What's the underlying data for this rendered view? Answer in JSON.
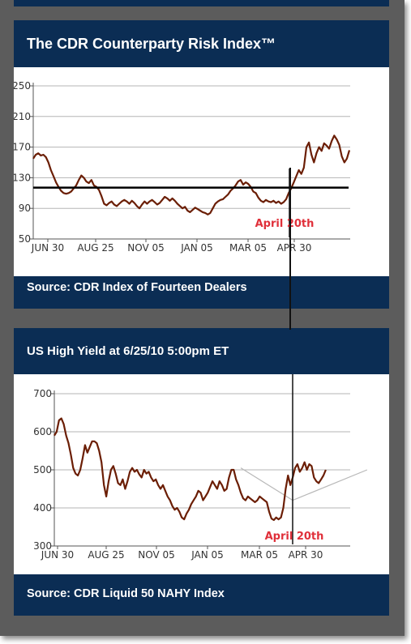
{
  "chart_data": [
    {
      "type": "line",
      "title": "The CDR Counterparty Risk Index™",
      "source": "Source: CDR Index of Fourteen Dealers",
      "ylim": [
        50,
        250
      ],
      "yticks": [
        "250",
        "210",
        "170",
        "130",
        "90",
        "50"
      ],
      "ytick_values": [
        250,
        210,
        170,
        130,
        90,
        50
      ],
      "xlim": [
        "JUN 30",
        "end"
      ],
      "xticks": [
        "JUN 30",
        "AUG 25",
        "NOV 05",
        "JAN 05",
        "MAR 05",
        "APR 30"
      ],
      "grid": true,
      "reference_line": 117,
      "annotation": "April 20th",
      "series": [
        {
          "values": [
            [
              0,
              155
            ],
            [
              2,
              160
            ],
            [
              4,
              162
            ],
            [
              6,
              159
            ],
            [
              8,
              160
            ],
            [
              10,
              157
            ],
            [
              12,
              150
            ],
            [
              14,
              140
            ],
            [
              16,
              132
            ],
            [
              18,
              124
            ],
            [
              20,
              118
            ],
            [
              22,
              113
            ],
            [
              24,
              110
            ],
            [
              26,
              109
            ],
            [
              28,
              110
            ],
            [
              30,
              112
            ],
            [
              32,
              116
            ],
            [
              34,
              120
            ],
            [
              36,
              127
            ],
            [
              38,
              133
            ],
            [
              40,
              130
            ],
            [
              42,
              125
            ],
            [
              44,
              123
            ],
            [
              46,
              127
            ],
            [
              48,
              120
            ],
            [
              50,
              118
            ],
            [
              52,
              114
            ],
            [
              54,
              106
            ],
            [
              56,
              96
            ],
            [
              58,
              94
            ],
            [
              60,
              97
            ],
            [
              62,
              99
            ],
            [
              64,
              95
            ],
            [
              66,
              93
            ],
            [
              68,
              96
            ],
            [
              70,
              99
            ],
            [
              72,
              101
            ],
            [
              74,
              99
            ],
            [
              76,
              96
            ],
            [
              78,
              100
            ],
            [
              80,
              97
            ],
            [
              82,
              93
            ],
            [
              84,
              90
            ],
            [
              86,
              95
            ],
            [
              88,
              99
            ],
            [
              90,
              96
            ],
            [
              92,
              99
            ],
            [
              94,
              101
            ],
            [
              96,
              98
            ],
            [
              98,
              95
            ],
            [
              100,
              97
            ],
            [
              102,
              101
            ],
            [
              104,
              105
            ],
            [
              106,
              103
            ],
            [
              108,
              100
            ],
            [
              110,
              103
            ],
            [
              112,
              100
            ],
            [
              114,
              96
            ],
            [
              116,
              93
            ],
            [
              118,
              90
            ],
            [
              120,
              92
            ],
            [
              122,
              87
            ],
            [
              124,
              85
            ],
            [
              126,
              88
            ],
            [
              128,
              91
            ],
            [
              130,
              89
            ],
            [
              132,
              87
            ],
            [
              134,
              85
            ],
            [
              136,
              84
            ],
            [
              138,
              82
            ],
            [
              140,
              84
            ],
            [
              142,
              90
            ],
            [
              144,
              96
            ],
            [
              146,
              99
            ],
            [
              148,
              101
            ],
            [
              150,
              102
            ],
            [
              152,
              105
            ],
            [
              154,
              108
            ],
            [
              156,
              113
            ],
            [
              158,
              116
            ],
            [
              160,
              120
            ],
            [
              162,
              125
            ],
            [
              164,
              127
            ],
            [
              166,
              121
            ],
            [
              168,
              124
            ],
            [
              170,
              122
            ],
            [
              172,
              118
            ],
            [
              174,
              112
            ],
            [
              176,
              110
            ],
            [
              178,
              104
            ],
            [
              180,
              100
            ],
            [
              182,
              98
            ],
            [
              184,
              101
            ],
            [
              186,
              99
            ],
            [
              188,
              98
            ],
            [
              190,
              100
            ],
            [
              192,
              97
            ],
            [
              194,
              99
            ],
            [
              196,
              96
            ],
            [
              198,
              98
            ],
            [
              200,
              102
            ],
            [
              202,
              110
            ],
            [
              204,
              116
            ],
            [
              206,
              124
            ],
            [
              208,
              132
            ],
            [
              210,
              140
            ],
            [
              212,
              135
            ],
            [
              214,
              143
            ],
            [
              216,
              170
            ],
            [
              218,
              176
            ],
            [
              220,
              160
            ],
            [
              222,
              150
            ],
            [
              224,
              162
            ],
            [
              226,
              170
            ],
            [
              228,
              165
            ],
            [
              230,
              175
            ],
            [
              232,
              172
            ],
            [
              234,
              168
            ],
            [
              236,
              178
            ],
            [
              238,
              185
            ],
            [
              240,
              180
            ],
            [
              242,
              173
            ],
            [
              244,
              158
            ],
            [
              246,
              150
            ],
            [
              248,
              155
            ],
            [
              250,
              166
            ]
          ]
        }
      ]
    },
    {
      "type": "line",
      "title": "US High Yield at 6/25/10 5:00pm ET",
      "source": "Source: CDR Liquid 50 NAHY Index",
      "ylim": [
        300,
        700
      ],
      "yticks": [
        "700",
        "600",
        "500",
        "400",
        "300"
      ],
      "ytick_values": [
        700,
        600,
        500,
        400,
        300
      ],
      "xlim": [
        "JUN 30",
        "end"
      ],
      "xticks": [
        "JUN 30",
        "AUG 25",
        "NOV 05",
        "JAN 05",
        "MAR 05",
        "APR 30"
      ],
      "grid": true,
      "annotation": "April 20th",
      "trend_lines": [
        {
          "from": [
            158,
            505
          ],
          "to": [
            202,
            420
          ]
        },
        {
          "from": [
            202,
            420
          ],
          "to": [
            265,
            500
          ]
        }
      ],
      "series": [
        {
          "values": [
            [
              0,
              590
            ],
            [
              2,
              600
            ],
            [
              4,
              630
            ],
            [
              6,
              635
            ],
            [
              8,
              620
            ],
            [
              10,
              590
            ],
            [
              12,
              570
            ],
            [
              14,
              540
            ],
            [
              16,
              505
            ],
            [
              18,
              490
            ],
            [
              20,
              485
            ],
            [
              22,
              500
            ],
            [
              24,
              530
            ],
            [
              26,
              565
            ],
            [
              28,
              545
            ],
            [
              30,
              560
            ],
            [
              32,
              575
            ],
            [
              34,
              575
            ],
            [
              36,
              570
            ],
            [
              38,
              550
            ],
            [
              40,
              520
            ],
            [
              42,
              460
            ],
            [
              44,
              430
            ],
            [
              46,
              470
            ],
            [
              48,
              500
            ],
            [
              50,
              510
            ],
            [
              52,
              490
            ],
            [
              54,
              465
            ],
            [
              56,
              460
            ],
            [
              58,
              475
            ],
            [
              60,
              450
            ],
            [
              62,
              470
            ],
            [
              64,
              495
            ],
            [
              66,
              505
            ],
            [
              68,
              495
            ],
            [
              70,
              500
            ],
            [
              72,
              488
            ],
            [
              74,
              480
            ],
            [
              76,
              500
            ],
            [
              78,
              490
            ],
            [
              80,
              495
            ],
            [
              82,
              480
            ],
            [
              84,
              470
            ],
            [
              86,
              475
            ],
            [
              88,
              460
            ],
            [
              90,
              450
            ],
            [
              92,
              460
            ],
            [
              94,
              445
            ],
            [
              96,
              430
            ],
            [
              98,
              420
            ],
            [
              100,
              405
            ],
            [
              102,
              395
            ],
            [
              104,
              400
            ],
            [
              106,
              390
            ],
            [
              108,
              375
            ],
            [
              110,
              370
            ],
            [
              112,
              385
            ],
            [
              114,
              395
            ],
            [
              116,
              410
            ],
            [
              118,
              420
            ],
            [
              120,
              430
            ],
            [
              122,
              445
            ],
            [
              124,
              440
            ],
            [
              126,
              420
            ],
            [
              128,
              430
            ],
            [
              130,
              440
            ],
            [
              132,
              455
            ],
            [
              134,
              470
            ],
            [
              136,
              460
            ],
            [
              138,
              450
            ],
            [
              140,
              470
            ],
            [
              142,
              460
            ],
            [
              144,
              445
            ],
            [
              146,
              450
            ],
            [
              148,
              480
            ],
            [
              150,
              500
            ],
            [
              152,
              500
            ],
            [
              154,
              475
            ],
            [
              156,
              460
            ],
            [
              158,
              440
            ],
            [
              160,
              425
            ],
            [
              162,
              420
            ],
            [
              164,
              430
            ],
            [
              166,
              425
            ],
            [
              168,
              420
            ],
            [
              170,
              415
            ],
            [
              172,
              420
            ],
            [
              174,
              430
            ],
            [
              176,
              425
            ],
            [
              178,
              420
            ],
            [
              180,
              415
            ],
            [
              182,
              390
            ],
            [
              184,
              372
            ],
            [
              186,
              368
            ],
            [
              188,
              375
            ],
            [
              190,
              370
            ],
            [
              192,
              375
            ],
            [
              194,
              400
            ],
            [
              196,
              450
            ],
            [
              198,
              485
            ],
            [
              200,
              460
            ],
            [
              202,
              480
            ],
            [
              204,
              505
            ],
            [
              206,
              515
            ],
            [
              208,
              495
            ],
            [
              210,
              505
            ],
            [
              212,
              520
            ],
            [
              214,
              500
            ],
            [
              216,
              515
            ],
            [
              218,
              510
            ],
            [
              220,
              480
            ],
            [
              222,
              470
            ],
            [
              224,
              465
            ],
            [
              226,
              475
            ],
            [
              228,
              485
            ],
            [
              230,
              500
            ]
          ]
        }
      ]
    }
  ]
}
